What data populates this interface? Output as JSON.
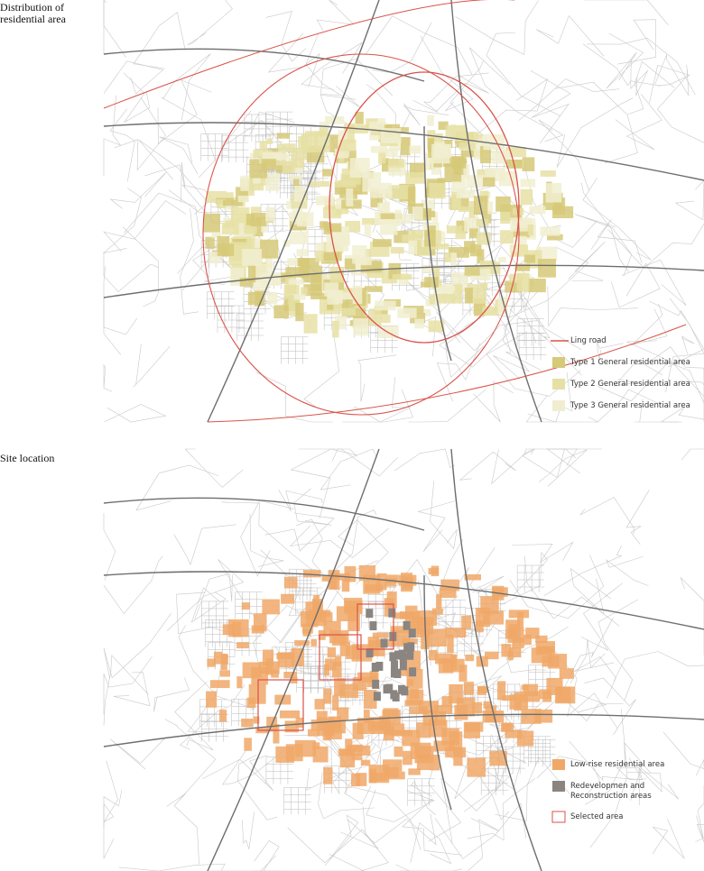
{
  "panels": [
    {
      "label": "Distribution of residential area",
      "legend": [
        {
          "label": "Ling road",
          "color": "#d9534a",
          "marker": "line"
        },
        {
          "label": "Type 1 General residential area",
          "color": "#d6c978",
          "marker": "box"
        },
        {
          "label": "Type 2 General residential area",
          "color": "#e6e0a4",
          "marker": "box"
        },
        {
          "label": "Type 3 General residential area",
          "color": "#f1eed0",
          "marker": "box"
        }
      ]
    },
    {
      "label": "Site location",
      "legend": [
        {
          "label": "Low-rise residential area",
          "color": "#f0a868",
          "marker": "box"
        },
        {
          "label": "Redevelopmen and Reconstruction areas",
          "color": "#8a8581",
          "marker": "box"
        },
        {
          "label": "Selected area",
          "color": "#d9534a",
          "marker": "outline"
        }
      ]
    }
  ]
}
